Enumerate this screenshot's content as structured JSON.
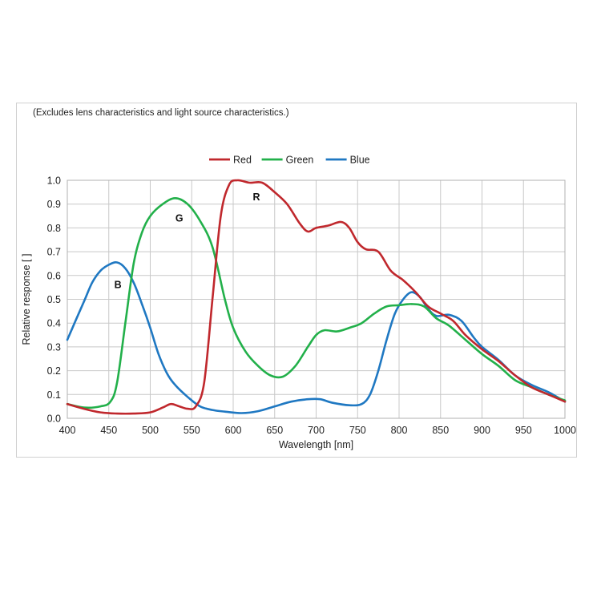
{
  "chart_data": {
    "type": "line",
    "subtitle": "(Excludes lens characteristics and light source characteristics.)",
    "xlabel": "Wavelength [nm]",
    "ylabel": "Relative response [ ]",
    "xlim": [
      400,
      1000
    ],
    "ylim": [
      0,
      1.0
    ],
    "x_ticks": [
      "400",
      "450",
      "500",
      "550",
      "600",
      "650",
      "700",
      "750",
      "800",
      "850",
      "900",
      "950",
      "1000"
    ],
    "y_ticks": [
      "0.0",
      "0.1",
      "0.2",
      "0.3",
      "0.4",
      "0.5",
      "0.6",
      "0.7",
      "0.8",
      "0.9",
      "1.0"
    ],
    "grid": true,
    "legend_position": "top-center",
    "series": [
      {
        "name": "Red",
        "color": "#c0282d",
        "label": "R",
        "label_at": [
          628,
          0.93
        ],
        "points": [
          [
            400,
            0.06
          ],
          [
            420,
            0.04
          ],
          [
            440,
            0.025
          ],
          [
            460,
            0.02
          ],
          [
            480,
            0.02
          ],
          [
            500,
            0.025
          ],
          [
            515,
            0.045
          ],
          [
            525,
            0.06
          ],
          [
            535,
            0.05
          ],
          [
            545,
            0.04
          ],
          [
            555,
            0.05
          ],
          [
            565,
            0.15
          ],
          [
            575,
            0.5
          ],
          [
            585,
            0.85
          ],
          [
            595,
            0.98
          ],
          [
            605,
            1.0
          ],
          [
            620,
            0.99
          ],
          [
            635,
            0.99
          ],
          [
            650,
            0.95
          ],
          [
            665,
            0.9
          ],
          [
            680,
            0.82
          ],
          [
            690,
            0.785
          ],
          [
            700,
            0.8
          ],
          [
            715,
            0.81
          ],
          [
            730,
            0.825
          ],
          [
            740,
            0.8
          ],
          [
            750,
            0.74
          ],
          [
            760,
            0.71
          ],
          [
            775,
            0.7
          ],
          [
            790,
            0.62
          ],
          [
            805,
            0.58
          ],
          [
            820,
            0.53
          ],
          [
            835,
            0.47
          ],
          [
            850,
            0.44
          ],
          [
            865,
            0.41
          ],
          [
            880,
            0.35
          ],
          [
            900,
            0.29
          ],
          [
            920,
            0.24
          ],
          [
            940,
            0.18
          ],
          [
            960,
            0.13
          ],
          [
            980,
            0.1
          ],
          [
            1000,
            0.07
          ]
        ]
      },
      {
        "name": "Green",
        "color": "#22b04a",
        "label": "G",
        "label_at": [
          535,
          0.84
        ],
        "points": [
          [
            400,
            0.06
          ],
          [
            420,
            0.045
          ],
          [
            440,
            0.05
          ],
          [
            452,
            0.07
          ],
          [
            460,
            0.15
          ],
          [
            470,
            0.4
          ],
          [
            480,
            0.65
          ],
          [
            490,
            0.78
          ],
          [
            500,
            0.85
          ],
          [
            515,
            0.9
          ],
          [
            530,
            0.925
          ],
          [
            545,
            0.9
          ],
          [
            560,
            0.83
          ],
          [
            575,
            0.72
          ],
          [
            590,
            0.5
          ],
          [
            600,
            0.38
          ],
          [
            615,
            0.28
          ],
          [
            630,
            0.22
          ],
          [
            645,
            0.18
          ],
          [
            660,
            0.175
          ],
          [
            675,
            0.22
          ],
          [
            690,
            0.3
          ],
          [
            700,
            0.35
          ],
          [
            710,
            0.37
          ],
          [
            725,
            0.365
          ],
          [
            740,
            0.38
          ],
          [
            755,
            0.4
          ],
          [
            770,
            0.44
          ],
          [
            785,
            0.47
          ],
          [
            800,
            0.475
          ],
          [
            815,
            0.48
          ],
          [
            830,
            0.47
          ],
          [
            845,
            0.42
          ],
          [
            860,
            0.39
          ],
          [
            880,
            0.33
          ],
          [
            900,
            0.27
          ],
          [
            920,
            0.22
          ],
          [
            940,
            0.16
          ],
          [
            960,
            0.13
          ],
          [
            980,
            0.1
          ],
          [
            1000,
            0.075
          ]
        ]
      },
      {
        "name": "Blue",
        "color": "#1f78c2",
        "label": "B",
        "label_at": [
          461,
          0.56
        ],
        "points": [
          [
            400,
            0.33
          ],
          [
            410,
            0.41
          ],
          [
            420,
            0.49
          ],
          [
            430,
            0.57
          ],
          [
            440,
            0.62
          ],
          [
            450,
            0.645
          ],
          [
            460,
            0.655
          ],
          [
            470,
            0.63
          ],
          [
            480,
            0.57
          ],
          [
            490,
            0.48
          ],
          [
            500,
            0.38
          ],
          [
            510,
            0.27
          ],
          [
            520,
            0.19
          ],
          [
            530,
            0.14
          ],
          [
            545,
            0.09
          ],
          [
            560,
            0.05
          ],
          [
            575,
            0.035
          ],
          [
            590,
            0.028
          ],
          [
            610,
            0.022
          ],
          [
            630,
            0.03
          ],
          [
            650,
            0.05
          ],
          [
            670,
            0.07
          ],
          [
            690,
            0.08
          ],
          [
            705,
            0.08
          ],
          [
            720,
            0.065
          ],
          [
            740,
            0.055
          ],
          [
            755,
            0.06
          ],
          [
            765,
            0.1
          ],
          [
            775,
            0.2
          ],
          [
            785,
            0.33
          ],
          [
            795,
            0.44
          ],
          [
            805,
            0.5
          ],
          [
            815,
            0.53
          ],
          [
            825,
            0.51
          ],
          [
            835,
            0.46
          ],
          [
            845,
            0.43
          ],
          [
            860,
            0.435
          ],
          [
            875,
            0.41
          ],
          [
            890,
            0.34
          ],
          [
            900,
            0.3
          ],
          [
            920,
            0.245
          ],
          [
            940,
            0.18
          ],
          [
            960,
            0.14
          ],
          [
            980,
            0.11
          ],
          [
            1000,
            0.07
          ]
        ]
      }
    ]
  }
}
